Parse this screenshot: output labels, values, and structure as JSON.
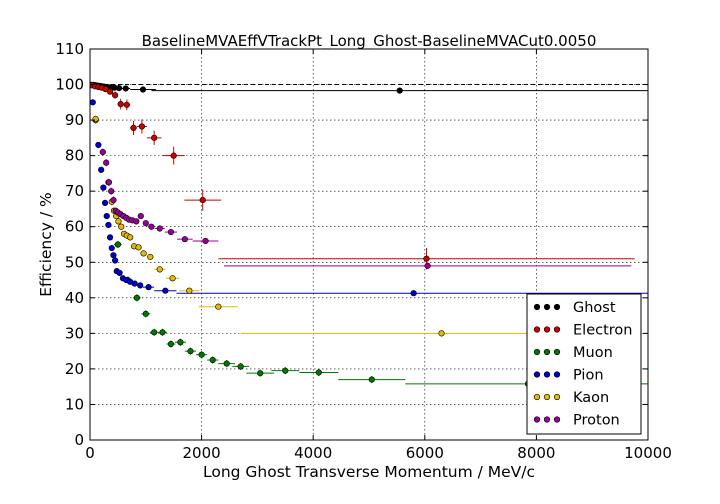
{
  "chart_data": {
    "type": "scatter",
    "title": "BaselineMVAEffVTrackPt_Long_Ghost-BaselineMVACut0.0050",
    "xlabel": "Long Ghost Transverse Momentum / MeV/c",
    "ylabel": "Efficiency / %",
    "xlim": [
      0,
      10000
    ],
    "ylim": [
      0,
      110
    ],
    "x_ticks": [
      "0",
      "2000",
      "4000",
      "6000",
      "8000",
      "10000"
    ],
    "y_ticks": [
      "0",
      "10",
      "20",
      "30",
      "40",
      "50",
      "60",
      "70",
      "80",
      "90",
      "100",
      "110"
    ],
    "grid": true,
    "legend_position": "lower-right",
    "reference_line": {
      "y": 100,
      "style": "dashed",
      "color": "#000000"
    },
    "series": [
      {
        "name": "Ghost",
        "color": "#000000",
        "points": [
          {
            "x": 20,
            "y": 99.9,
            "xerr": 20,
            "yerr": 0.1
          },
          {
            "x": 60,
            "y": 99.9,
            "xerr": 20,
            "yerr": 0.1
          },
          {
            "x": 100,
            "y": 99.8,
            "xerr": 20,
            "yerr": 0.1
          },
          {
            "x": 140,
            "y": 99.7,
            "xerr": 20,
            "yerr": 0.1
          },
          {
            "x": 180,
            "y": 99.6,
            "xerr": 20,
            "yerr": 0.1
          },
          {
            "x": 220,
            "y": 99.5,
            "xerr": 20,
            "yerr": 0.1
          },
          {
            "x": 260,
            "y": 99.4,
            "xerr": 20,
            "yerr": 0.1
          },
          {
            "x": 310,
            "y": 99.3,
            "xerr": 25,
            "yerr": 0.1
          },
          {
            "x": 370,
            "y": 99.2,
            "xerr": 30,
            "yerr": 0.1
          },
          {
            "x": 440,
            "y": 99.1,
            "xerr": 35,
            "yerr": 0.1
          },
          {
            "x": 520,
            "y": 99.0,
            "xerr": 40,
            "yerr": 0.2
          },
          {
            "x": 640,
            "y": 98.9,
            "xerr": 80,
            "yerr": 0.2
          },
          {
            "x": 950,
            "y": 98.6,
            "xerr": 230,
            "yerr": 0.3
          },
          {
            "x": 5550,
            "y": 98.3,
            "xerr": 4450,
            "yerr": 0.6
          }
        ]
      },
      {
        "name": "Electron",
        "color": "#cc0000",
        "points": [
          {
            "x": 30,
            "y": 99.8,
            "xerr": 30,
            "yerr": 0.2
          },
          {
            "x": 90,
            "y": 99.5,
            "xerr": 30,
            "yerr": 0.3
          },
          {
            "x": 150,
            "y": 99.3,
            "xerr": 30,
            "yerr": 0.4
          },
          {
            "x": 210,
            "y": 99.1,
            "xerr": 30,
            "yerr": 0.5
          },
          {
            "x": 280,
            "y": 98.7,
            "xerr": 35,
            "yerr": 0.6
          },
          {
            "x": 360,
            "y": 98.0,
            "xerr": 40,
            "yerr": 0.8
          },
          {
            "x": 450,
            "y": 97.0,
            "xerr": 45,
            "yerr": 1.0
          },
          {
            "x": 550,
            "y": 94.5,
            "xerr": 50,
            "yerr": 1.5
          },
          {
            "x": 660,
            "y": 94.3,
            "xerr": 60,
            "yerr": 1.5
          },
          {
            "x": 780,
            "y": 87.8,
            "xerr": 60,
            "yerr": 2.0
          },
          {
            "x": 930,
            "y": 88.2,
            "xerr": 90,
            "yerr": 2.0
          },
          {
            "x": 1150,
            "y": 85.0,
            "xerr": 130,
            "yerr": 2.0
          },
          {
            "x": 1500,
            "y": 80.0,
            "xerr": 200,
            "yerr": 2.5
          },
          {
            "x": 2020,
            "y": 67.5,
            "xerr": 330,
            "yerr": 3.0
          },
          {
            "x": 6030,
            "y": 51.0,
            "xerr": 3730,
            "yerr": 3.0
          }
        ]
      },
      {
        "name": "Muon",
        "color": "#007700",
        "points": [
          {
            "x": 100,
            "y": 90.0,
            "xerr": 50,
            "yerr": 1.0
          },
          {
            "x": 500,
            "y": 55.0,
            "xerr": 70,
            "yerr": 1.0
          },
          {
            "x": 680,
            "y": 45.0,
            "xerr": 70,
            "yerr": 1.0
          },
          {
            "x": 840,
            "y": 40.0,
            "xerr": 70,
            "yerr": 1.0
          },
          {
            "x": 1000,
            "y": 35.5,
            "xerr": 80,
            "yerr": 1.0
          },
          {
            "x": 1150,
            "y": 30.3,
            "xerr": 80,
            "yerr": 1.0
          },
          {
            "x": 1300,
            "y": 30.3,
            "xerr": 80,
            "yerr": 1.0
          },
          {
            "x": 1450,
            "y": 27.0,
            "xerr": 80,
            "yerr": 1.0
          },
          {
            "x": 1620,
            "y": 27.5,
            "xerr": 100,
            "yerr": 1.0
          },
          {
            "x": 1800,
            "y": 25.0,
            "xerr": 100,
            "yerr": 1.0
          },
          {
            "x": 2000,
            "y": 24.0,
            "xerr": 100,
            "yerr": 1.0
          },
          {
            "x": 2200,
            "y": 22.5,
            "xerr": 100,
            "yerr": 1.0
          },
          {
            "x": 2450,
            "y": 21.5,
            "xerr": 150,
            "yerr": 1.0
          },
          {
            "x": 2700,
            "y": 20.7,
            "xerr": 150,
            "yerr": 1.0
          },
          {
            "x": 3050,
            "y": 18.8,
            "xerr": 250,
            "yerr": 1.0
          },
          {
            "x": 3500,
            "y": 19.5,
            "xerr": 250,
            "yerr": 1.0
          },
          {
            "x": 4100,
            "y": 19.0,
            "xerr": 350,
            "yerr": 1.0
          },
          {
            "x": 5050,
            "y": 17.0,
            "xerr": 600,
            "yerr": 1.0
          },
          {
            "x": 7850,
            "y": 15.8,
            "xerr": 2200,
            "yerr": 1.0
          }
        ]
      },
      {
        "name": "Pion",
        "color": "#0000cc",
        "points": [
          {
            "x": 50,
            "y": 95.0,
            "xerr": 25,
            "yerr": 0.3
          },
          {
            "x": 150,
            "y": 83.0,
            "xerr": 25,
            "yerr": 0.3
          },
          {
            "x": 200,
            "y": 76.0,
            "xerr": 25,
            "yerr": 0.3
          },
          {
            "x": 240,
            "y": 71.0,
            "xerr": 20,
            "yerr": 0.3
          },
          {
            "x": 270,
            "y": 66.7,
            "xerr": 15,
            "yerr": 0.3
          },
          {
            "x": 300,
            "y": 63.0,
            "xerr": 15,
            "yerr": 0.3
          },
          {
            "x": 330,
            "y": 60.5,
            "xerr": 15,
            "yerr": 0.3
          },
          {
            "x": 360,
            "y": 57.0,
            "xerr": 15,
            "yerr": 0.3
          },
          {
            "x": 390,
            "y": 54.0,
            "xerr": 15,
            "yerr": 0.3
          },
          {
            "x": 420,
            "y": 52.0,
            "xerr": 15,
            "yerr": 0.3
          },
          {
            "x": 450,
            "y": 50.5,
            "xerr": 15,
            "yerr": 0.3
          },
          {
            "x": 480,
            "y": 47.5,
            "xerr": 15,
            "yerr": 0.3
          },
          {
            "x": 530,
            "y": 47.0,
            "xerr": 25,
            "yerr": 0.3
          },
          {
            "x": 590,
            "y": 45.5,
            "xerr": 30,
            "yerr": 0.3
          },
          {
            "x": 650,
            "y": 45.0,
            "xerr": 30,
            "yerr": 0.3
          },
          {
            "x": 720,
            "y": 44.5,
            "xerr": 35,
            "yerr": 0.3
          },
          {
            "x": 800,
            "y": 44.0,
            "xerr": 45,
            "yerr": 0.3
          },
          {
            "x": 900,
            "y": 43.5,
            "xerr": 50,
            "yerr": 0.3
          },
          {
            "x": 1050,
            "y": 43.0,
            "xerr": 100,
            "yerr": 0.3
          },
          {
            "x": 1350,
            "y": 42.0,
            "xerr": 200,
            "yerr": 0.3
          },
          {
            "x": 5800,
            "y": 41.3,
            "xerr": 4250,
            "yerr": 0.3
          }
        ]
      },
      {
        "name": "Kaon",
        "color": "#e6b800",
        "points": [
          {
            "x": 100,
            "y": 90.3,
            "xerr": 30,
            "yerr": 1.0
          },
          {
            "x": 330,
            "y": 72.5,
            "xerr": 25,
            "yerr": 1.0
          },
          {
            "x": 390,
            "y": 67.0,
            "xerr": 20,
            "yerr": 1.0
          },
          {
            "x": 430,
            "y": 64.5,
            "xerr": 20,
            "yerr": 0.8
          },
          {
            "x": 470,
            "y": 63.0,
            "xerr": 20,
            "yerr": 0.8
          },
          {
            "x": 510,
            "y": 61.5,
            "xerr": 20,
            "yerr": 0.8
          },
          {
            "x": 560,
            "y": 60.0,
            "xerr": 25,
            "yerr": 0.8
          },
          {
            "x": 610,
            "y": 58.0,
            "xerr": 25,
            "yerr": 0.8
          },
          {
            "x": 660,
            "y": 57.5,
            "xerr": 25,
            "yerr": 0.8
          },
          {
            "x": 720,
            "y": 57.0,
            "xerr": 30,
            "yerr": 0.8
          },
          {
            "x": 790,
            "y": 54.5,
            "xerr": 35,
            "yerr": 0.8
          },
          {
            "x": 870,
            "y": 54.2,
            "xerr": 40,
            "yerr": 0.8
          },
          {
            "x": 960,
            "y": 52.5,
            "xerr": 45,
            "yerr": 0.8
          },
          {
            "x": 1080,
            "y": 51.5,
            "xerr": 60,
            "yerr": 0.8
          },
          {
            "x": 1250,
            "y": 48.0,
            "xerr": 100,
            "yerr": 0.8
          },
          {
            "x": 1480,
            "y": 45.5,
            "xerr": 120,
            "yerr": 0.8
          },
          {
            "x": 1780,
            "y": 42.0,
            "xerr": 180,
            "yerr": 0.8
          },
          {
            "x": 2300,
            "y": 37.5,
            "xerr": 350,
            "yerr": 0.8
          },
          {
            "x": 6300,
            "y": 30.0,
            "xerr": 3600,
            "yerr": 0.8
          }
        ]
      },
      {
        "name": "Proton",
        "color": "#990099",
        "points": [
          {
            "x": 230,
            "y": 81.0,
            "xerr": 40,
            "yerr": 1.0
          },
          {
            "x": 290,
            "y": 78.0,
            "xerr": 30,
            "yerr": 1.0
          },
          {
            "x": 340,
            "y": 72.5,
            "xerr": 25,
            "yerr": 1.0
          },
          {
            "x": 380,
            "y": 70.0,
            "xerr": 20,
            "yerr": 1.0
          },
          {
            "x": 420,
            "y": 67.5,
            "xerr": 20,
            "yerr": 1.0
          },
          {
            "x": 460,
            "y": 64.5,
            "xerr": 20,
            "yerr": 0.8
          },
          {
            "x": 500,
            "y": 64.0,
            "xerr": 20,
            "yerr": 0.8
          },
          {
            "x": 550,
            "y": 63.5,
            "xerr": 25,
            "yerr": 0.8
          },
          {
            "x": 600,
            "y": 63.0,
            "xerr": 25,
            "yerr": 0.8
          },
          {
            "x": 650,
            "y": 62.5,
            "xerr": 25,
            "yerr": 0.8
          },
          {
            "x": 700,
            "y": 62.0,
            "xerr": 25,
            "yerr": 0.8
          },
          {
            "x": 760,
            "y": 61.8,
            "xerr": 30,
            "yerr": 0.8
          },
          {
            "x": 830,
            "y": 61.5,
            "xerr": 35,
            "yerr": 0.8
          },
          {
            "x": 910,
            "y": 63.0,
            "xerr": 40,
            "yerr": 0.8
          },
          {
            "x": 1000,
            "y": 61.0,
            "xerr": 45,
            "yerr": 0.8
          },
          {
            "x": 1100,
            "y": 60.0,
            "xerr": 55,
            "yerr": 0.8
          },
          {
            "x": 1250,
            "y": 59.5,
            "xerr": 90,
            "yerr": 0.8
          },
          {
            "x": 1450,
            "y": 58.5,
            "xerr": 110,
            "yerr": 0.8
          },
          {
            "x": 1700,
            "y": 56.5,
            "xerr": 140,
            "yerr": 0.8
          },
          {
            "x": 2070,
            "y": 56.0,
            "xerr": 230,
            "yerr": 0.8
          },
          {
            "x": 6050,
            "y": 49.0,
            "xerr": 3650,
            "yerr": 0.8
          }
        ]
      }
    ]
  }
}
